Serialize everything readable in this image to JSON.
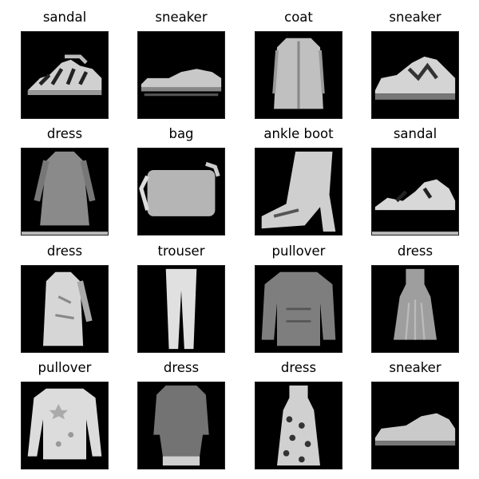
{
  "figure": {
    "background": "#ffffff",
    "tile_background": "#000000",
    "items": [
      {
        "label": "sandal",
        "icon": "sandal-image"
      },
      {
        "label": "sneaker",
        "icon": "sneaker-image"
      },
      {
        "label": "coat",
        "icon": "coat-image"
      },
      {
        "label": "sneaker",
        "icon": "sneaker-image"
      },
      {
        "label": "dress",
        "icon": "dress-image"
      },
      {
        "label": "bag",
        "icon": "bag-image"
      },
      {
        "label": "ankle boot",
        "icon": "ankle-boot-image"
      },
      {
        "label": "sandal",
        "icon": "sandal-image"
      },
      {
        "label": "dress",
        "icon": "dress-image"
      },
      {
        "label": "trouser",
        "icon": "trouser-image"
      },
      {
        "label": "pullover",
        "icon": "pullover-image"
      },
      {
        "label": "dress",
        "icon": "dress-image"
      },
      {
        "label": "pullover",
        "icon": "pullover-image"
      },
      {
        "label": "dress",
        "icon": "dress-image"
      },
      {
        "label": "dress",
        "icon": "dress-image"
      },
      {
        "label": "sneaker",
        "icon": "sneaker-image"
      }
    ]
  }
}
